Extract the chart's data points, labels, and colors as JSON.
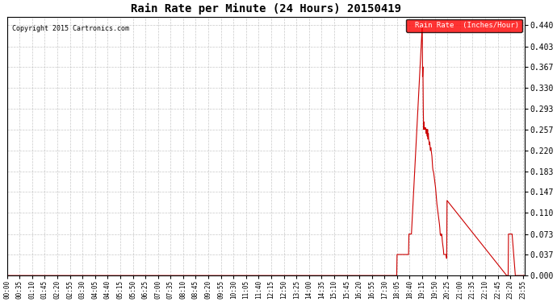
{
  "title": "Rain Rate per Minute (24 Hours) 20150419",
  "copyright": "Copyright 2015 Cartronics.com",
  "legend_label": "Rain Rate  (Inches/Hour)",
  "y_ticks": [
    0.0,
    0.037,
    0.073,
    0.11,
    0.147,
    0.183,
    0.22,
    0.257,
    0.293,
    0.33,
    0.367,
    0.403,
    0.44
  ],
  "ylim": [
    0.0,
    0.455
  ],
  "x_tick_labels": [
    "00:00",
    "00:35",
    "01:10",
    "01:45",
    "02:20",
    "02:55",
    "03:30",
    "04:05",
    "04:40",
    "05:15",
    "05:50",
    "06:25",
    "07:00",
    "07:35",
    "08:10",
    "08:45",
    "09:20",
    "09:55",
    "10:30",
    "11:05",
    "11:40",
    "12:15",
    "12:50",
    "13:25",
    "14:00",
    "14:35",
    "15:10",
    "15:45",
    "16:20",
    "16:55",
    "17:30",
    "18:05",
    "18:40",
    "19:15",
    "19:50",
    "20:25",
    "21:00",
    "21:35",
    "22:10",
    "22:45",
    "23:20",
    "23:55"
  ],
  "background_color": "#ffffff",
  "plot_bg_color": "#ffffff",
  "grid_color": "#bbbbbb",
  "line_color": "#cc0000",
  "title_color": "#000000",
  "legend_bg": "#ff0000",
  "legend_text_color": "#ffffff"
}
